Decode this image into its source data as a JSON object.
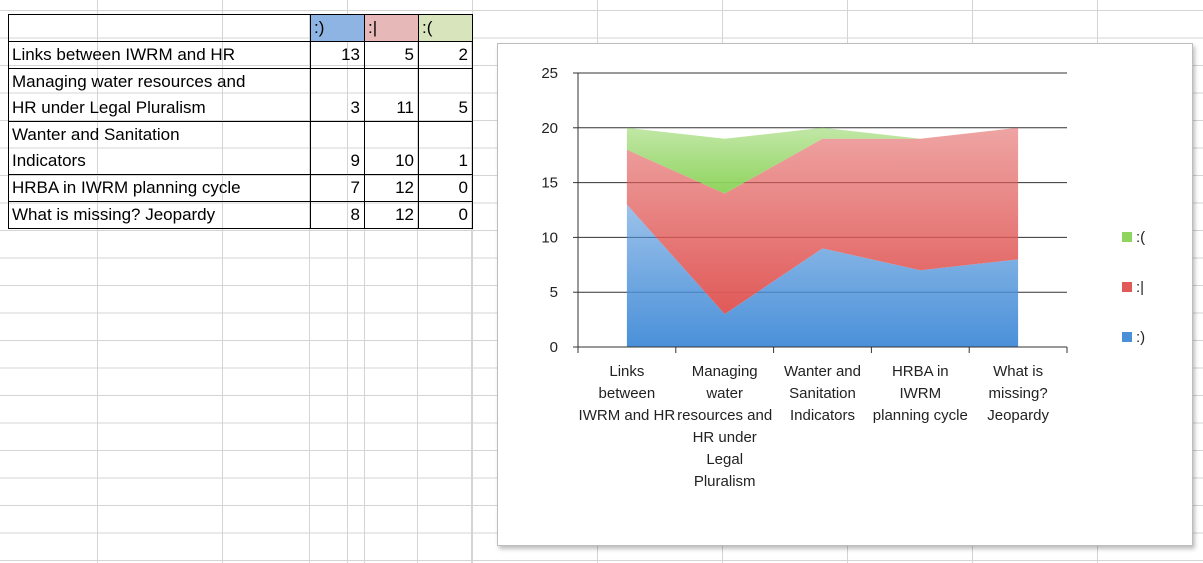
{
  "table": {
    "headers": [
      ":)",
      ":|",
      ":("
    ],
    "header_colors": [
      "#8db4e2",
      "#e6b8b7",
      "#d7e4bc"
    ],
    "rows": [
      {
        "label": [
          "Links between IWRM and HR"
        ],
        "values": [
          13,
          5,
          2
        ]
      },
      {
        "label": [
          "Managing water resources and",
          "HR under Legal Pluralism"
        ],
        "values": [
          3,
          11,
          5
        ]
      },
      {
        "label": [
          "Wanter and Sanitation",
          "Indicators"
        ],
        "values": [
          9,
          10,
          1
        ]
      },
      {
        "label": [
          "HRBA in IWRM planning cycle"
        ],
        "values": [
          7,
          12,
          0
        ]
      },
      {
        "label": [
          "What is missing? Jeopardy"
        ],
        "values": [
          8,
          12,
          0
        ]
      }
    ]
  },
  "chart_data": {
    "type": "area",
    "stacked": true,
    "categories": [
      "Links between IWRM and HR",
      "Managing water resources and HR under Legal Pluralism",
      "Wanter and Sanitation Indicators",
      "HRBA in IWRM planning cycle",
      "What is missing? Jeopardy"
    ],
    "category_label_lines": [
      [
        "Links",
        "between",
        "IWRM and HR"
      ],
      [
        "Managing",
        "water",
        "resources and",
        "HR under",
        "Legal",
        "Pluralism"
      ],
      [
        "Wanter and",
        "Sanitation",
        "Indicators"
      ],
      [
        "HRBA in",
        "IWRM",
        "planning cycle"
      ],
      [
        "What is",
        "missing?",
        "Jeopardy"
      ]
    ],
    "series": [
      {
        "name": ":)",
        "values": [
          13,
          3,
          9,
          7,
          8
        ],
        "color": "#4a90d9"
      },
      {
        "name": ":|",
        "values": [
          5,
          11,
          10,
          12,
          12
        ],
        "color": "#e05a58"
      },
      {
        "name": ":(",
        "values": [
          2,
          5,
          1,
          0,
          0
        ],
        "color": "#8fd45e"
      }
    ],
    "ylim": [
      0,
      25
    ],
    "yticks": [
      "0",
      "5",
      "10",
      "15",
      "20",
      "25"
    ],
    "legend_order": [
      ":(",
      ":|",
      ":)"
    ],
    "legend_position": "right",
    "grid": true
  }
}
